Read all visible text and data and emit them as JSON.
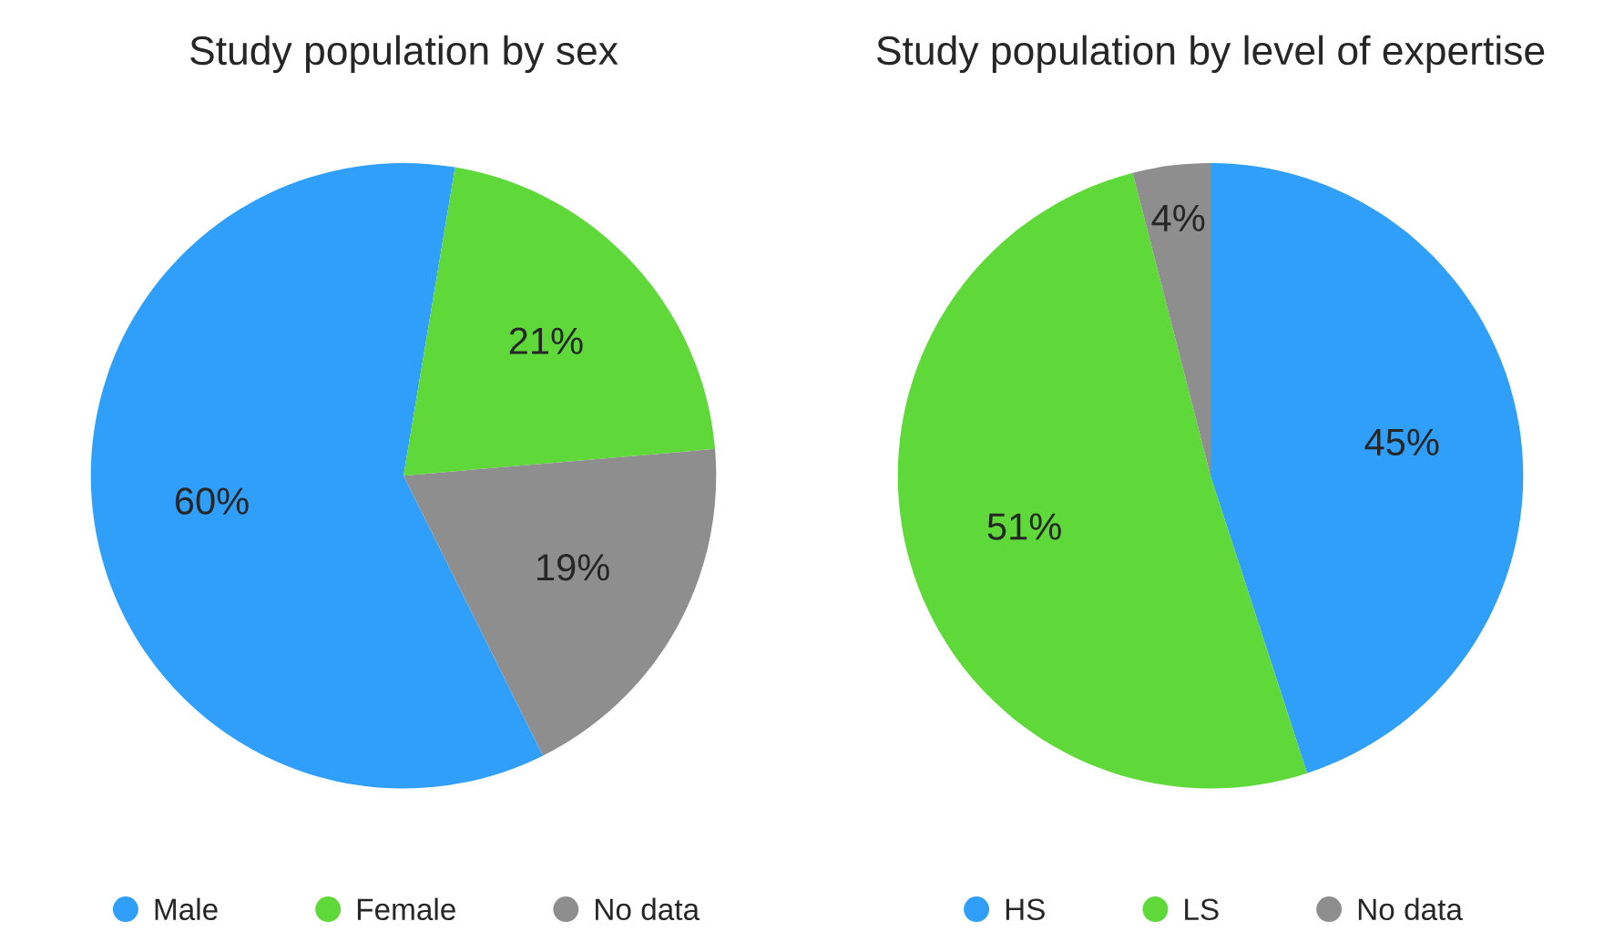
{
  "chart_data": [
    {
      "type": "pie",
      "title": "Study population by sex",
      "categories": [
        "Male",
        "Female",
        "No data"
      ],
      "values": [
        60,
        21,
        19
      ],
      "colors": [
        "#2f9ffa",
        "#5fd83a",
        "#8e8e8e"
      ],
      "value_labels": [
        "60%",
        "21%",
        "19%"
      ],
      "legend": "bottom"
    },
    {
      "type": "pie",
      "title": "Study population by level of expertise",
      "categories": [
        "HS",
        "LS",
        "No data"
      ],
      "values": [
        45,
        51,
        4
      ],
      "colors": [
        "#2f9ffa",
        "#5fd83a",
        "#8e8e8e"
      ],
      "value_labels": [
        "45%",
        "51%",
        "4%"
      ],
      "legend": "bottom"
    }
  ]
}
